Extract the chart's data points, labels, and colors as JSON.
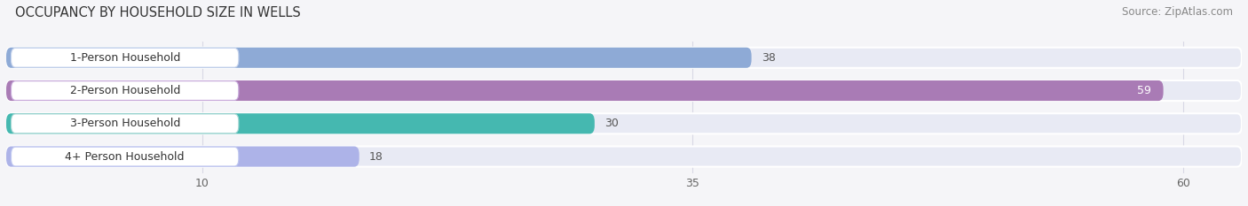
{
  "title": "OCCUPANCY BY HOUSEHOLD SIZE IN WELLS",
  "source": "Source: ZipAtlas.com",
  "categories": [
    "1-Person Household",
    "2-Person Household",
    "3-Person Household",
    "4+ Person Household"
  ],
  "values": [
    38,
    59,
    30,
    18
  ],
  "bar_colors": [
    "#8eaad6",
    "#a97bb5",
    "#45b8b0",
    "#adb3e8"
  ],
  "bar_bg_colors": [
    "#e8eaf4",
    "#e8eaf4",
    "#e8eaf4",
    "#e8eaf4"
  ],
  "label_box_colors": [
    "#dde5f5",
    "#d8c2e2",
    "#c0e8e5",
    "#d5d8f5"
  ],
  "label_border_colors": [
    "#c8d5ee",
    "#c8aadc",
    "#a8d8d5",
    "#c0c8f0"
  ],
  "value_text_colors": [
    "#444444",
    "#ffffff",
    "#444444",
    "#444444"
  ],
  "xlim_max": 63,
  "xticks": [
    10,
    35,
    60
  ],
  "bg_color": "#f5f5f8",
  "title_fontsize": 10.5,
  "source_fontsize": 8.5,
  "bar_label_fontsize": 9,
  "value_fontsize": 9
}
